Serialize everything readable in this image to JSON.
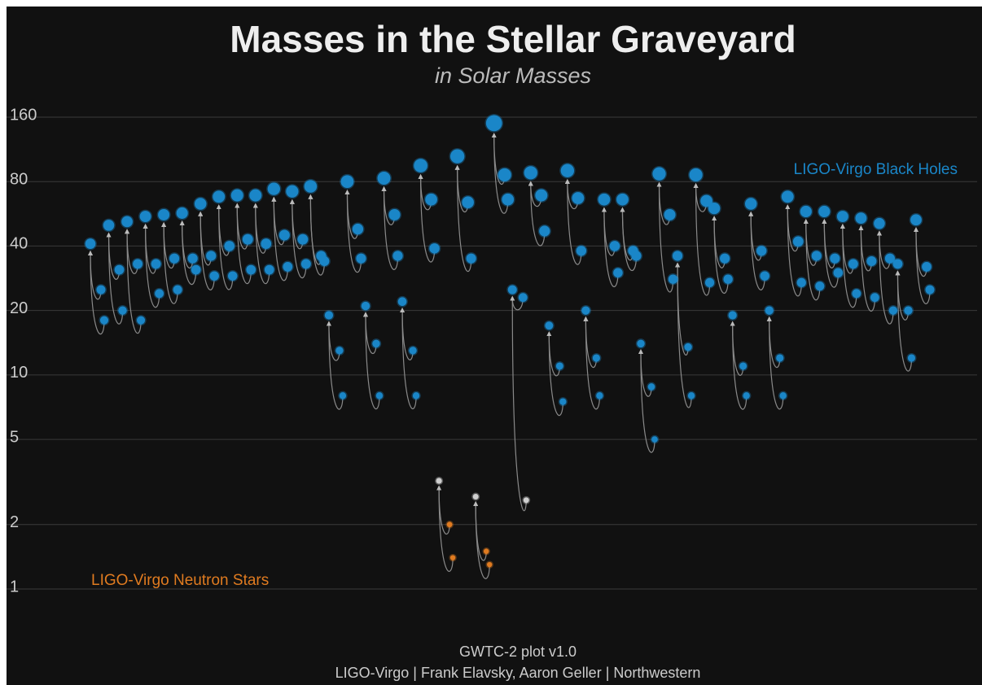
{
  "chart_data": {
    "type": "graveyard",
    "title": "Masses in the Stellar Graveyard",
    "subtitle": "in Solar Masses",
    "log_scale": true,
    "grid": true,
    "ylim": [
      1,
      160
    ],
    "yticks": [
      1,
      2,
      5,
      10,
      20,
      40,
      80,
      160
    ],
    "bh_color": "#1a86c8",
    "ns_color": "#e07b20",
    "uncertain_color": "#cfcfcf",
    "labels": [
      {
        "text": "LIGO-Virgo Black Holes",
        "color": "#1a86c8",
        "corner": "upper right"
      },
      {
        "text": "LIGO-Virgo Neutron Stars",
        "color": "#e07b20",
        "corner": "lower left"
      }
    ],
    "footer": [
      "GWTC-2 plot v1.0",
      "LIGO-Virgo | Frank Elavsky, Aaron Geller | Northwestern"
    ],
    "events": [
      {
        "final": 41,
        "m1": 25,
        "m2": 18
      },
      {
        "final": 50,
        "m1": 31,
        "m2": 20
      },
      {
        "final": 52,
        "m1": 33,
        "m2": 18
      },
      {
        "final": 55,
        "m1": 33,
        "m2": 24
      },
      {
        "final": 56,
        "m1": 35,
        "m2": 25
      },
      {
        "final": 57,
        "m1": 35,
        "m2": 31
      },
      {
        "final": 63,
        "m1": 36,
        "m2": 29
      },
      {
        "final": 68,
        "m1": 40,
        "m2": 29
      },
      {
        "final": 69,
        "m1": 43,
        "m2": 31
      },
      {
        "final": 69,
        "m1": 41,
        "m2": 31
      },
      {
        "final": 74,
        "m1": 45,
        "m2": 32
      },
      {
        "final": 72,
        "m1": 43,
        "m2": 33
      },
      {
        "final": 76,
        "m1": 36,
        "m2": 34
      },
      {
        "final": 19,
        "m1": 13,
        "m2": 8
      },
      {
        "final": 80,
        "m1": 48,
        "m2": 35
      },
      {
        "final": 21,
        "m1": 14,
        "m2": 8
      },
      {
        "final": 83,
        "m1": 56,
        "m2": 36
      },
      {
        "final": 22,
        "m1": 13,
        "m2": 8
      },
      {
        "final": 95,
        "m1": 66,
        "m2": 39
      },
      {
        "final": 3.2,
        "m1": 2.0,
        "m2": 1.4,
        "colors": [
          "#cfcfcf",
          "#e07b20",
          "#e07b20"
        ]
      },
      {
        "final": 105,
        "m1": 64,
        "m2": 35
      },
      {
        "final": 2.7,
        "m1": 1.5,
        "m2": 1.3,
        "colors": [
          "#cfcfcf",
          "#e07b20",
          "#e07b20"
        ]
      },
      {
        "final": 150,
        "m1": 86,
        "m2": 66
      },
      {
        "final": 25,
        "m1": 23,
        "m2": 2.6,
        "colors": [
          "#1a86c8",
          "#1a86c8",
          "#cfcfcf"
        ]
      },
      {
        "final": 88,
        "m1": 69,
        "m2": 47
      },
      {
        "final": 17,
        "m1": 11,
        "m2": 7.5
      },
      {
        "final": 90,
        "m1": 67,
        "m2": 38
      },
      {
        "final": 20,
        "m1": 12,
        "m2": 8
      },
      {
        "final": 66,
        "m1": 40,
        "m2": 30
      },
      {
        "final": 66,
        "m1": 38,
        "m2": 36
      },
      {
        "final": 14,
        "m1": 8.8,
        "m2": 5
      },
      {
        "final": 87,
        "m1": 56,
        "m2": 28
      },
      {
        "final": 36,
        "m1": 13.5,
        "m2": 8
      },
      {
        "final": 86,
        "m1": 65,
        "m2": 27
      },
      {
        "final": 60,
        "m1": 35,
        "m2": 28
      },
      {
        "final": 19,
        "m1": 11,
        "m2": 8
      },
      {
        "final": 63,
        "m1": 38,
        "m2": 29
      },
      {
        "final": 20,
        "m1": 12,
        "m2": 8
      },
      {
        "final": 68,
        "m1": 42,
        "m2": 27
      },
      {
        "final": 58,
        "m1": 36,
        "m2": 26
      },
      {
        "final": 58,
        "m1": 35,
        "m2": 30
      },
      {
        "final": 55,
        "m1": 33,
        "m2": 24
      },
      {
        "final": 54,
        "m1": 34,
        "m2": 23
      },
      {
        "final": 51,
        "m1": 35,
        "m2": 20
      },
      {
        "final": 33,
        "m1": 20,
        "m2": 12
      },
      {
        "final": 53,
        "m1": 32,
        "m2": 25
      }
    ]
  }
}
